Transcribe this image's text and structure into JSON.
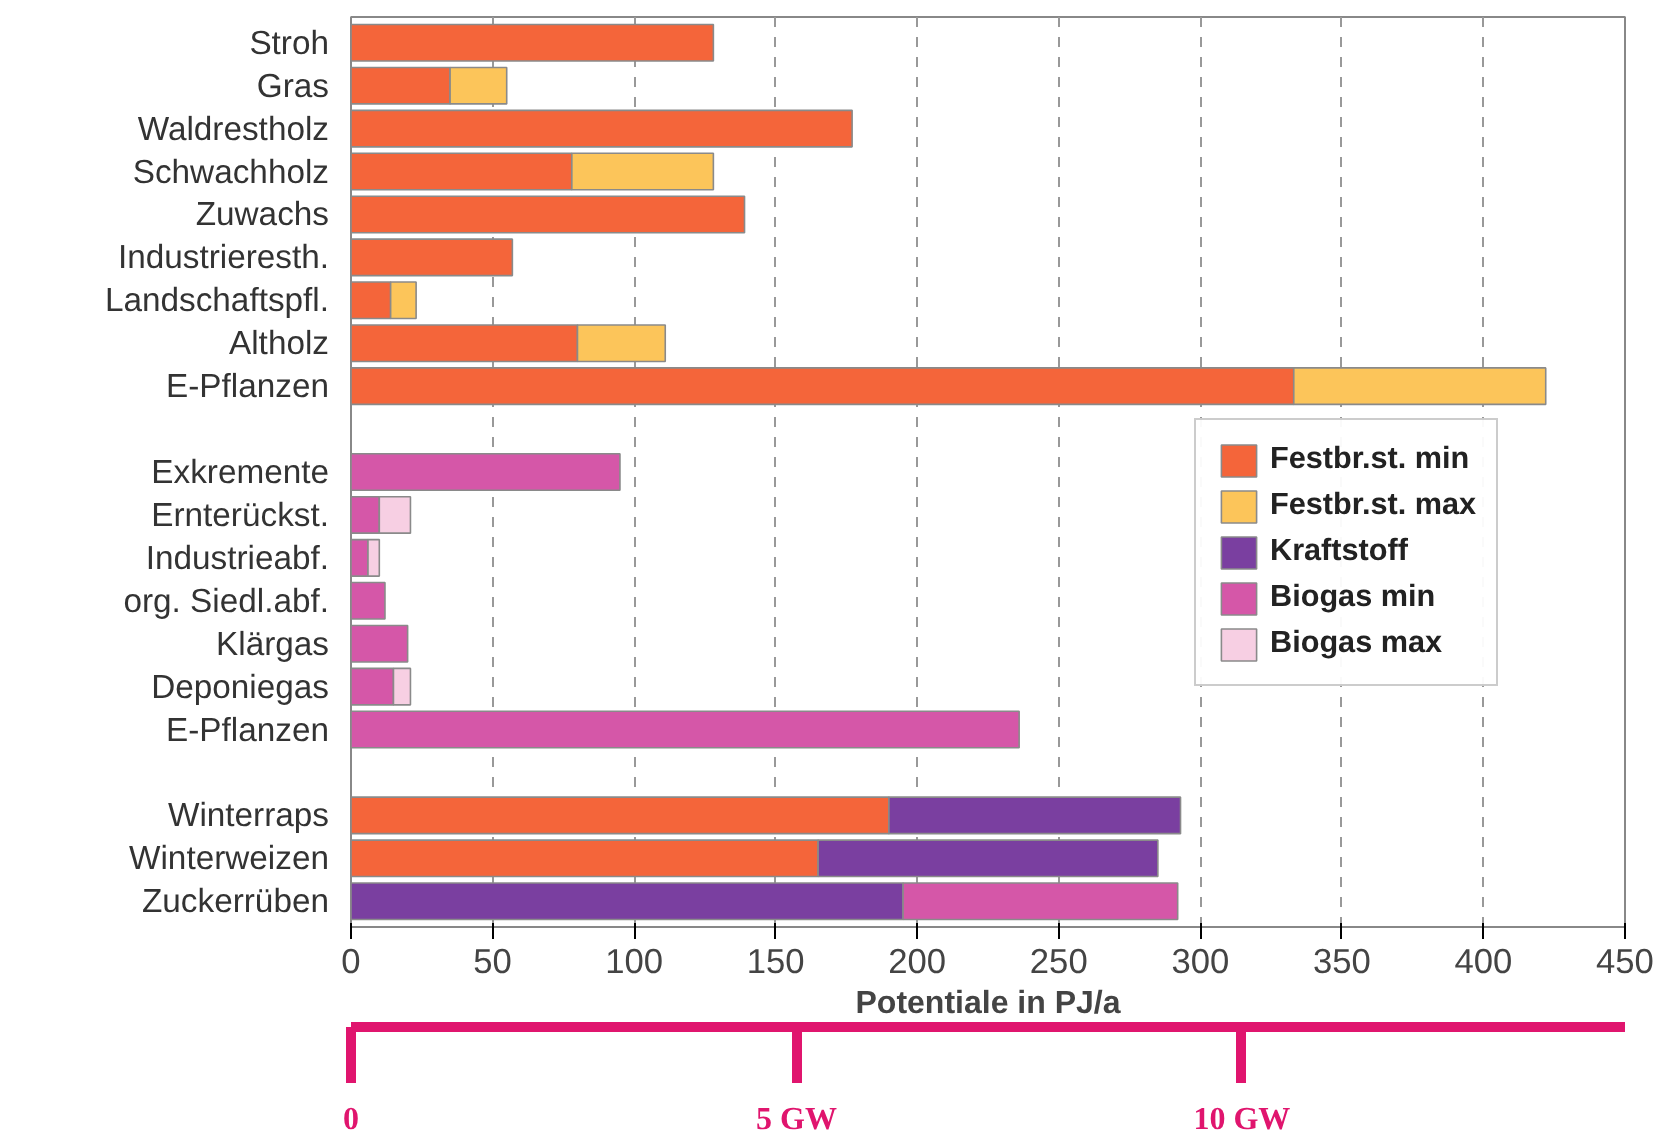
{
  "chart_data": {
    "type": "bar",
    "orientation": "horizontal",
    "stacked": true,
    "xlabel": "Potentiale in PJ/a",
    "categories": [
      "Stroh",
      "Gras",
      "Waldrestholz",
      "Schwachholz",
      "Zuwachs",
      "Industrieresth.",
      "Landschaftspfl.",
      "Altholz",
      "E-Pflanzen",
      null,
      "Exkremente",
      "Ernterückst.",
      "Industrieabf.",
      "org. Siedl.abf.",
      "Klärgas",
      "Deponiegas",
      "E-Pflanzen",
      null,
      "Winterraps",
      "Winterweizen",
      "Zuckerrüben"
    ],
    "series": [
      {
        "name": "Festbr.st. min",
        "color": "#f4653a",
        "values": [
          128,
          35,
          177,
          78,
          139,
          57,
          14,
          80,
          333,
          null,
          null,
          null,
          null,
          null,
          null,
          null,
          null,
          null,
          190,
          165,
          null
        ]
      },
      {
        "name": "Festbr.st. max",
        "color": "#fcc55a",
        "values": [
          null,
          20,
          null,
          50,
          null,
          null,
          9,
          31,
          89,
          null,
          null,
          null,
          null,
          null,
          null,
          null,
          null,
          null,
          null,
          null,
          null
        ]
      },
      {
        "name": "Kraftstoff",
        "color": "#7a3fa0",
        "values": [
          null,
          null,
          null,
          null,
          null,
          null,
          null,
          null,
          null,
          null,
          null,
          null,
          null,
          null,
          null,
          null,
          null,
          null,
          103,
          120,
          195
        ]
      },
      {
        "name": "Biogas min",
        "color": "#d557a8",
        "values": [
          null,
          null,
          null,
          null,
          null,
          null,
          null,
          null,
          null,
          null,
          95,
          10,
          6,
          12,
          20,
          15,
          236,
          null,
          null,
          null,
          97
        ]
      },
      {
        "name": "Biogas max",
        "color": "#f7cfe3",
        "values": [
          null,
          null,
          null,
          null,
          null,
          null,
          null,
          null,
          null,
          null,
          null,
          11,
          4,
          null,
          null,
          6,
          null,
          null,
          null,
          null,
          null
        ]
      }
    ],
    "xlim": [
      0,
      450
    ],
    "xticks": [
      0,
      50,
      100,
      150,
      200,
      250,
      300,
      350,
      400,
      450
    ],
    "x2lim": [
      0,
      14.3
    ],
    "x2ticks": [
      {
        "value": 0,
        "label": "0"
      },
      {
        "value": 5,
        "label": "5 GW"
      },
      {
        "value": 10,
        "label": "10 GW"
      }
    ],
    "grid": "x",
    "legend": "right"
  }
}
